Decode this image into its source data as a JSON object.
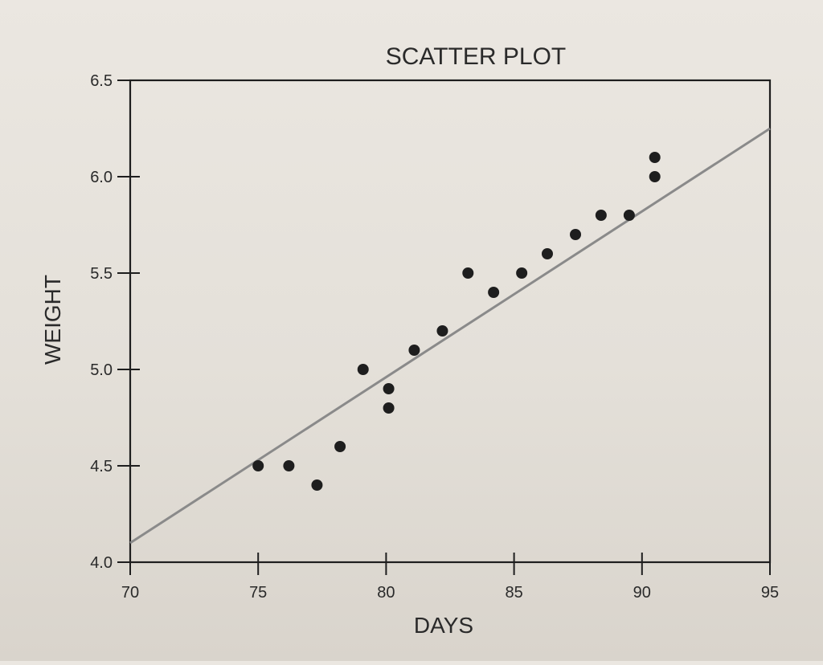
{
  "chart_data": {
    "type": "scatter",
    "title": "SCATTER PLOT",
    "xlabel": "DAYS",
    "ylabel": "WEIGHT",
    "xlim": [
      70,
      95
    ],
    "ylim": [
      4.0,
      6.5
    ],
    "grid": false,
    "legend": "none",
    "x_ticks": [
      70,
      75,
      80,
      85,
      90,
      95
    ],
    "x_tick_labels": [
      "70",
      "75",
      "80",
      "85",
      "90",
      "95"
    ],
    "y_ticks": [
      4.0,
      4.5,
      5.0,
      5.5,
      6.0,
      6.5
    ],
    "y_tick_labels": [
      "4.0",
      "4.5",
      "5.0",
      "5.5",
      "6.0",
      "6.5"
    ],
    "series": [
      {
        "points": [
          {
            "x": 75,
            "y": 4.5
          },
          {
            "x": 76.2,
            "y": 4.5
          },
          {
            "x": 77.3,
            "y": 4.4
          },
          {
            "x": 78.2,
            "y": 4.6
          },
          {
            "x": 79.1,
            "y": 5.0
          },
          {
            "x": 80.1,
            "y": 4.9
          },
          {
            "x": 80.1,
            "y": 4.8
          },
          {
            "x": 81.1,
            "y": 5.1
          },
          {
            "x": 82.2,
            "y": 5.2
          },
          {
            "x": 83.2,
            "y": 5.5
          },
          {
            "x": 84.2,
            "y": 5.4
          },
          {
            "x": 85.3,
            "y": 5.5
          },
          {
            "x": 86.3,
            "y": 5.6
          },
          {
            "x": 87.4,
            "y": 5.7
          },
          {
            "x": 88.4,
            "y": 5.8
          },
          {
            "x": 89.5,
            "y": 5.8
          },
          {
            "x": 90.5,
            "y": 6.0
          },
          {
            "x": 90.5,
            "y": 6.1
          }
        ]
      }
    ],
    "trend_line": {
      "x": [
        70,
        95
      ],
      "y": [
        4.1,
        6.25
      ]
    },
    "colors": {
      "points": "#1e1e1e",
      "trend_line": "#8a8a8a",
      "axes": "#1e1e1e"
    }
  }
}
